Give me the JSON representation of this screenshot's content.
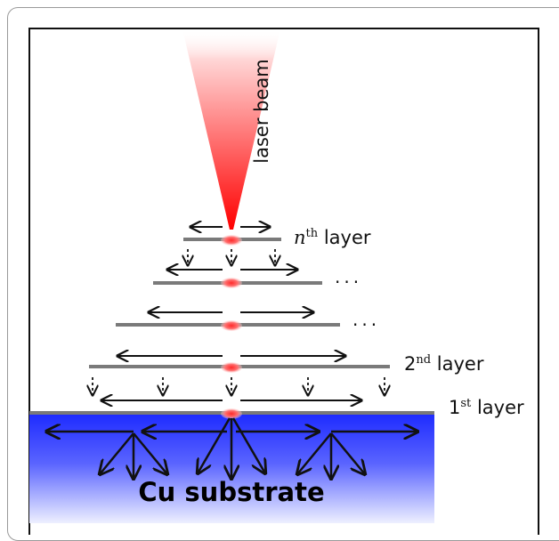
{
  "labels": {
    "laser_beam": "laser beam",
    "nth_prefix": "n",
    "nth_sup": "th",
    "nth_suffix": "layer",
    "second_prefix": "2",
    "second_sup": "nd",
    "second_suffix": "layer",
    "first_prefix": "1",
    "first_sup": "st",
    "first_suffix": "layer",
    "ellipsis_upper": "...",
    "ellipsis_lower": "...",
    "substrate": "Cu substrate"
  },
  "colors": {
    "beam": "#ff0000",
    "spot": "#ff3030",
    "layer_line": "#7a7a7a",
    "substrate_top": "#1f2cff",
    "substrate_bottom": "#e8ecff"
  }
}
